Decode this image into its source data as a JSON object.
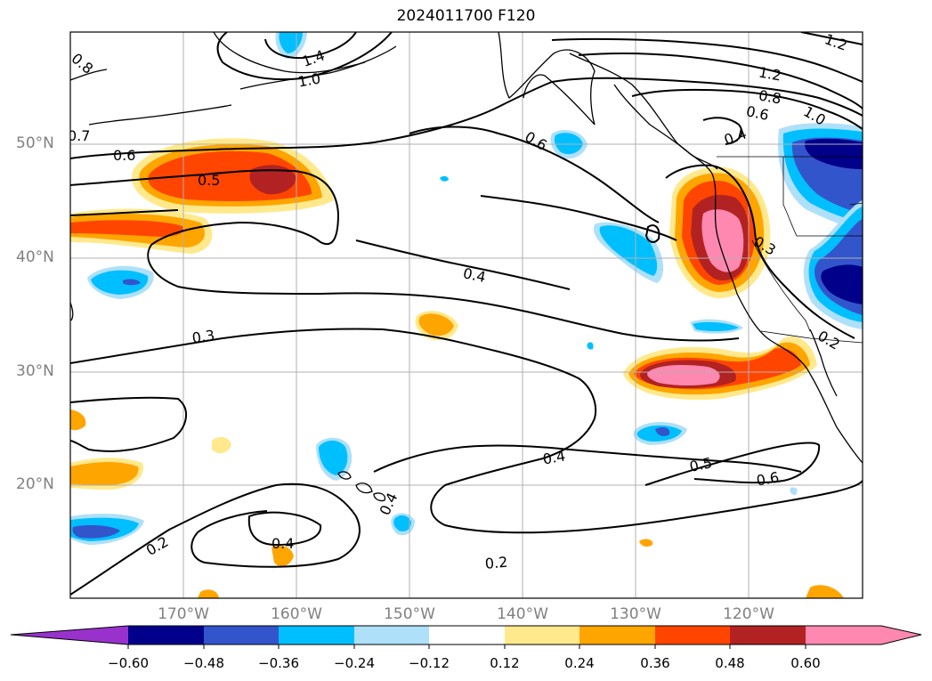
{
  "title": "2024011700 F120",
  "latitude_labels": [
    "50°N",
    "40°N",
    "30°N",
    "20°N"
  ],
  "longitude_labels": [
    "170°W",
    "160°W",
    "150°W",
    "140°W",
    "130°W",
    "120°W"
  ],
  "colorbar": {
    "ticks": [
      "−0.60",
      "−0.48",
      "−0.36",
      "−0.24",
      "−0.12",
      "0.12",
      "0.24",
      "0.36",
      "0.48",
      "0.60"
    ],
    "colors": [
      "#9932cc",
      "#00008b",
      "#3355cc",
      "#00bfff",
      "#aee0fa",
      "#ffffff",
      "#ffe98c",
      "#ffa500",
      "#ff4500",
      "#b22222",
      "#ff88b0"
    ]
  },
  "contour_labels": [
    "0.8",
    "0.7",
    "0.6",
    "0.5",
    "0.6",
    "0.4",
    "0.3",
    "1.2",
    "1.2",
    "0.8",
    "1.0",
    "0.6",
    "0.4",
    "0.3",
    "0.2",
    "0.4",
    "0.2",
    "0.4",
    "0.2",
    "0.4",
    "0.5",
    "0.6",
    "1.0",
    "1.4"
  ]
}
